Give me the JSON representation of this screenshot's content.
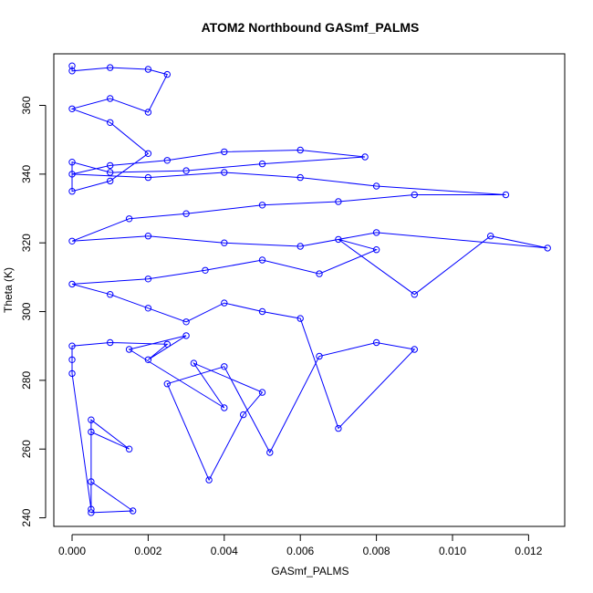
{
  "chart_data": {
    "type": "scatter",
    "title": "ATOM2 Northbound GASmf_PALMS",
    "xlabel": "GASmf_PALMS",
    "ylabel": "Theta (K)",
    "xlim": [
      -0.00048,
      0.01295
    ],
    "ylim": [
      237.5,
      375.0
    ],
    "x_ticks": [
      0.0,
      0.002,
      0.004,
      0.006,
      0.008,
      0.01,
      0.012
    ],
    "x_tick_labels": [
      "0.000",
      "0.002",
      "0.004",
      "0.006",
      "0.008",
      "0.010",
      "0.012"
    ],
    "y_ticks": [
      240,
      260,
      280,
      300,
      320,
      340,
      360
    ],
    "y_tick_labels": [
      "240",
      "260",
      "280",
      "300",
      "320",
      "340",
      "360"
    ],
    "grid": false,
    "legend": "none",
    "marker": "open-circle",
    "connected": true,
    "series_color": "#0000ff",
    "series": [
      {
        "x": [
          0.0005,
          0.0016,
          0.0005,
          0.0005,
          0.0015,
          0.0005,
          0.0005,
          0.0,
          0.0,
          0.0,
          0.001,
          0.0025,
          0.002,
          0.003,
          0.0015,
          0.004,
          0.0032,
          0.005,
          0.0045,
          0.0036,
          0.0025,
          0.004,
          0.0052,
          0.0065,
          0.008,
          0.009,
          0.007,
          0.006,
          0.005,
          0.004,
          0.003,
          0.002,
          0.001,
          0.0,
          0.002,
          0.0035,
          0.005,
          0.0065,
          0.008,
          0.007,
          0.009,
          0.011,
          0.0125,
          0.008,
          0.006,
          0.004,
          0.002,
          0.0,
          0.0015,
          0.003,
          0.005,
          0.007,
          0.009,
          0.0114,
          0.008,
          0.006,
          0.004,
          0.002,
          0.0,
          0.001,
          0.0025,
          0.004,
          0.006,
          0.0077,
          0.005,
          0.003,
          0.001,
          0.0,
          0.0,
          0.001,
          0.002,
          0.001,
          0.0,
          0.001,
          0.002,
          0.0025,
          0.002,
          0.001,
          0.0,
          0.0
        ],
        "y": [
          241.5,
          242.0,
          250.5,
          265.0,
          260.0,
          268.5,
          242.5,
          282.0,
          286.0,
          290.0,
          291.0,
          290.5,
          286.0,
          293.0,
          289.0,
          272.0,
          285.0,
          276.5,
          270.0,
          251.0,
          279.0,
          284.0,
          259.0,
          287.0,
          291.0,
          289.0,
          266.0,
          298.0,
          300.0,
          302.5,
          297.0,
          301.0,
          305.0,
          308.0,
          309.5,
          312.0,
          315.0,
          311.0,
          318.0,
          321.0,
          305.0,
          322.0,
          318.5,
          323.0,
          319.0,
          320.0,
          322.0,
          320.5,
          327.0,
          328.5,
          331.0,
          332.0,
          334.0,
          334.0,
          336.5,
          339.0,
          340.5,
          339.0,
          340.0,
          342.5,
          344.0,
          346.5,
          347.0,
          345.0,
          343.0,
          341.0,
          340.5,
          343.5,
          335.0,
          338.0,
          346.0,
          355.0,
          359.0,
          362.0,
          358.0,
          369.0,
          370.5,
          371.0,
          370.0,
          371.5
        ]
      }
    ]
  }
}
